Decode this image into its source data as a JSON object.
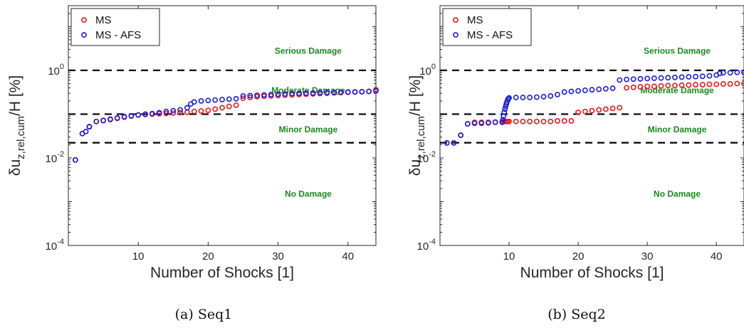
{
  "panels": [
    {
      "caption": "(a) Seq1",
      "chart_data": {
        "type": "scatter",
        "xlabel": "Number of Shocks [1]",
        "ylabel": "δu_{z,rel,cum}/H [%]",
        "xlim": [
          0,
          44
        ],
        "ylim": [
          0.0001,
          30
        ],
        "yscale": "log",
        "xticks": [
          10,
          20,
          30,
          40
        ],
        "yticks": [
          {
            "value": 0.0001,
            "base": "10",
            "exp": "-4"
          },
          {
            "value": 0.01,
            "base": "10",
            "exp": "-2"
          },
          {
            "value": 1,
            "base": "10",
            "exp": "0"
          }
        ],
        "thresholds": [
          1,
          0.1,
          0.0222
        ],
        "zones": [
          {
            "label": "Serious Damage",
            "y": 2.8
          },
          {
            "label": "Moderate Damage",
            "y": 0.35
          },
          {
            "label": "Minor Damage",
            "y": 0.045
          },
          {
            "label": "No Damage",
            "y": 0.0015
          }
        ],
        "legend_position": "top-left",
        "series": [
          {
            "name": "MS",
            "color": "#e8191c",
            "x": [
              1,
              2,
              3,
              4,
              5,
              6,
              7,
              8,
              9,
              10,
              11,
              12,
              13,
              14,
              15,
              16,
              17,
              18,
              19,
              20,
              21,
              22,
              23,
              24,
              25,
              26,
              27,
              28,
              29,
              30,
              31,
              32,
              33,
              34,
              35,
              36,
              37,
              38,
              39,
              40,
              41,
              42,
              43,
              44
            ],
            "y": [
              0.009,
              0.036,
              0.051,
              0.068,
              0.071,
              0.075,
              0.08,
              0.085,
              0.09,
              0.095,
              0.098,
              0.1,
              0.102,
              0.104,
              0.106,
              0.108,
              0.11,
              0.115,
              0.118,
              0.122,
              0.13,
              0.14,
              0.15,
              0.16,
              0.23,
              0.24,
              0.25,
              0.255,
              0.26,
              0.265,
              0.27,
              0.275,
              0.28,
              0.285,
              0.29,
              0.295,
              0.3,
              0.305,
              0.31,
              0.315,
              0.32,
              0.325,
              0.33,
              0.36
            ]
          },
          {
            "name": "MS - AFS",
            "color": "#1c1ce0",
            "x": [
              1,
              2,
              2.5,
              3,
              4,
              5,
              6,
              7,
              8,
              9,
              10,
              11,
              12,
              13,
              14,
              15,
              16,
              17,
              17.5,
              18,
              19,
              20,
              21,
              22,
              23,
              24,
              25,
              26,
              27,
              28,
              29,
              30,
              31,
              32,
              33,
              34,
              35,
              36,
              37,
              38,
              39,
              40,
              41,
              42,
              43,
              44
            ],
            "y": [
              0.009,
              0.036,
              0.04,
              0.052,
              0.068,
              0.072,
              0.077,
              0.082,
              0.088,
              0.092,
              0.096,
              0.1,
              0.103,
              0.108,
              0.115,
              0.12,
              0.125,
              0.14,
              0.17,
              0.19,
              0.2,
              0.205,
              0.21,
              0.215,
              0.22,
              0.225,
              0.26,
              0.265,
              0.27,
              0.275,
              0.28,
              0.285,
              0.29,
              0.295,
              0.3,
              0.302,
              0.305,
              0.31,
              0.312,
              0.315,
              0.318,
              0.32,
              0.322,
              0.325,
              0.33,
              0.34
            ]
          }
        ]
      }
    },
    {
      "caption": "(b) Seq2",
      "chart_data": {
        "type": "scatter",
        "xlabel": "Number of Shocks [1]",
        "ylabel": "δu_{z,rel,cum}/H [%]",
        "xlim": [
          0,
          44
        ],
        "ylim": [
          0.0001,
          30
        ],
        "yscale": "log",
        "xticks": [
          10,
          20,
          30,
          40
        ],
        "yticks": [
          {
            "value": 0.0001,
            "base": "10",
            "exp": "-4"
          },
          {
            "value": 0.01,
            "base": "10",
            "exp": "-2"
          },
          {
            "value": 1,
            "base": "10",
            "exp": "0"
          }
        ],
        "thresholds": [
          1,
          0.1,
          0.0222
        ],
        "zones": [
          {
            "label": "Serious Damage",
            "y": 2.8
          },
          {
            "label": "Moderate Damage",
            "y": 0.35
          },
          {
            "label": "Minor Damage",
            "y": 0.045
          },
          {
            "label": "No Damage",
            "y": 0.0015
          }
        ],
        "legend_position": "top-left",
        "series": [
          {
            "name": "MS",
            "color": "#e8191c",
            "x": [
              1,
              2,
              3,
              4,
              5,
              6,
              7,
              8,
              9,
              9.2,
              9.4,
              9.6,
              9.8,
              10,
              11,
              12,
              13,
              14,
              15,
              16,
              17,
              18,
              19,
              20,
              21,
              22,
              23,
              24,
              25,
              26,
              27,
              28,
              29,
              30,
              31,
              32,
              33,
              34,
              35,
              36,
              37,
              38,
              39,
              40,
              41,
              42,
              43,
              44
            ],
            "y": [
              0.022,
              0.022,
              0.033,
              0.06,
              0.065,
              0.065,
              0.065,
              0.066,
              0.067,
              0.068,
              0.068,
              0.068,
              0.068,
              0.068,
              0.068,
              0.068,
              0.068,
              0.068,
              0.068,
              0.068,
              0.07,
              0.07,
              0.07,
              0.11,
              0.115,
              0.12,
              0.125,
              0.13,
              0.135,
              0.14,
              0.4,
              0.41,
              0.42,
              0.43,
              0.43,
              0.44,
              0.45,
              0.45,
              0.46,
              0.46,
              0.47,
              0.47,
              0.48,
              0.48,
              0.49,
              0.49,
              0.5,
              0.5
            ]
          },
          {
            "name": "MS - AFS",
            "color": "#1c1ce0",
            "x": [
              1,
              2,
              3,
              4,
              5,
              6,
              7,
              8,
              9,
              9.1,
              9.2,
              9.3,
              9.4,
              9.5,
              9.6,
              9.7,
              9.8,
              9.9,
              10,
              11,
              12,
              13,
              14,
              15,
              16,
              17,
              18,
              19,
              20,
              21,
              22,
              23,
              24,
              25,
              26,
              27,
              28,
              29,
              30,
              31,
              32,
              33,
              34,
              35,
              36,
              37,
              38,
              39,
              40,
              40.5,
              41,
              42,
              43,
              44
            ],
            "y": [
              0.022,
              0.022,
              0.033,
              0.06,
              0.062,
              0.062,
              0.063,
              0.065,
              0.065,
              0.075,
              0.09,
              0.11,
              0.13,
              0.15,
              0.17,
              0.19,
              0.21,
              0.225,
              0.235,
              0.24,
              0.24,
              0.24,
              0.245,
              0.25,
              0.26,
              0.28,
              0.32,
              0.33,
              0.34,
              0.35,
              0.36,
              0.37,
              0.38,
              0.39,
              0.6,
              0.62,
              0.63,
              0.64,
              0.65,
              0.66,
              0.67,
              0.68,
              0.69,
              0.7,
              0.71,
              0.72,
              0.73,
              0.75,
              0.78,
              0.85,
              0.88,
              0.88,
              0.9,
              0.9
            ]
          }
        ]
      }
    }
  ]
}
